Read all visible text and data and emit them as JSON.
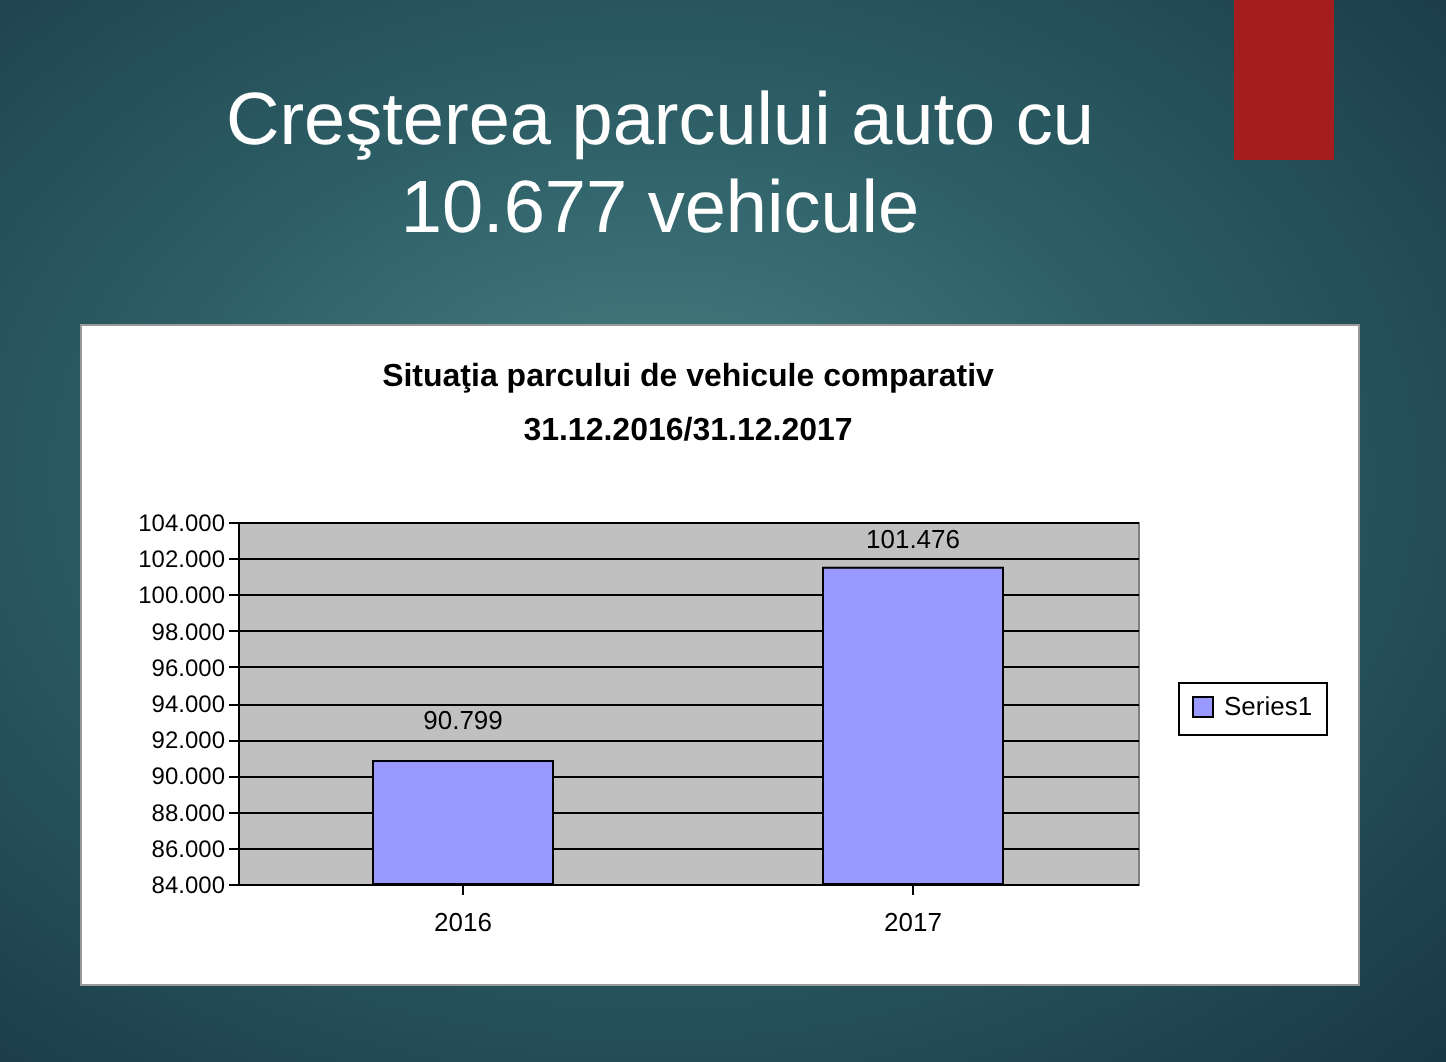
{
  "chart_data": {
    "type": "bar",
    "title": "Creşterea parcului auto cu 10.677 vehicule",
    "subtitle": "Situaţia parcului de vehicule comparativ 31.12.2016/31.12.2017",
    "categories": [
      "2016",
      "2017"
    ],
    "series": [
      {
        "name": "Series1",
        "color": "#9999ff",
        "values": [
          90799,
          101476
        ],
        "value_labels": [
          "90.799",
          "101.476"
        ]
      }
    ],
    "ylim": [
      84000,
      104000
    ],
    "yticks": [
      {
        "value": 84000,
        "label": "84.000"
      },
      {
        "value": 86000,
        "label": "86.000"
      },
      {
        "value": 88000,
        "label": "88.000"
      },
      {
        "value": 90000,
        "label": "90.000"
      },
      {
        "value": 92000,
        "label": "92.000"
      },
      {
        "value": 94000,
        "label": "94.000"
      },
      {
        "value": 96000,
        "label": "96.000"
      },
      {
        "value": 98000,
        "label": "98.000"
      },
      {
        "value": 100000,
        "label": "100.000"
      },
      {
        "value": 102000,
        "label": "102.000"
      },
      {
        "value": 104000,
        "label": "104.000"
      }
    ],
    "grid": "y",
    "legend": "right"
  }
}
